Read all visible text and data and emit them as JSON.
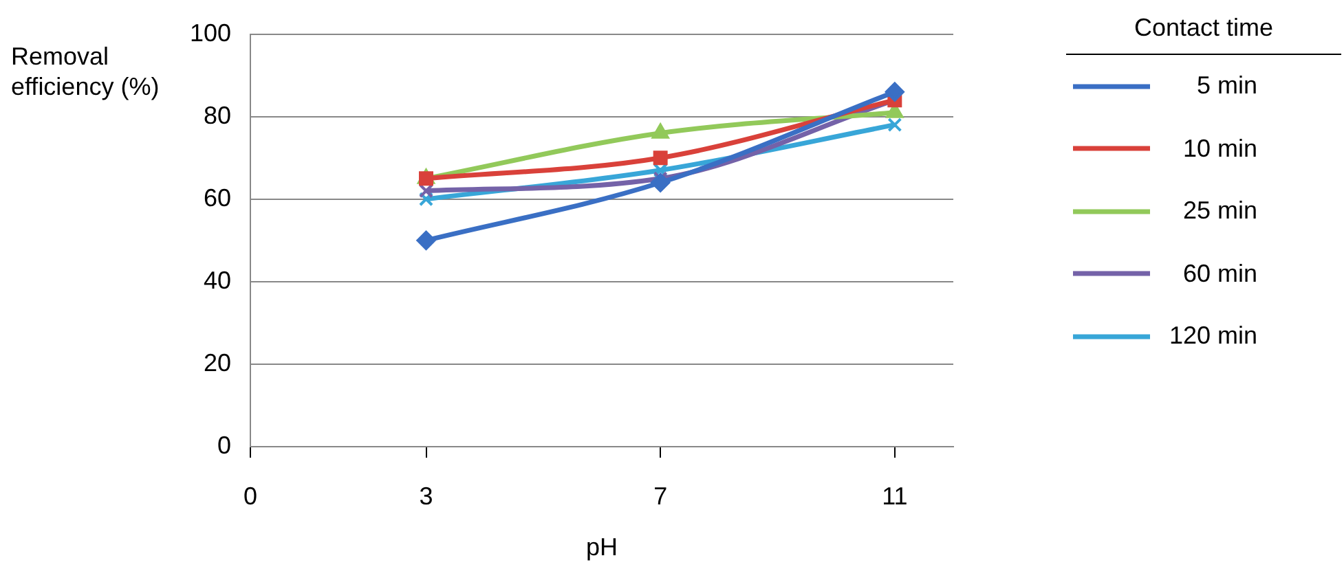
{
  "chart_data": {
    "type": "line",
    "xlabel": "pH",
    "ylabel": "Removal efficiency (%)",
    "legend_title": "Contact time",
    "x": [
      3,
      7,
      11
    ],
    "xlim": [
      0,
      12
    ],
    "xticks": [
      0,
      3,
      7,
      11
    ],
    "ylim": [
      0,
      100
    ],
    "yticks": [
      0,
      20,
      40,
      60,
      80,
      100
    ],
    "grid": "y",
    "legend": "right",
    "series": [
      {
        "name": "5 min",
        "color": "#3a6fc4",
        "marker": "diamond",
        "values": [
          50,
          64,
          86
        ]
      },
      {
        "name": "10 min",
        "color": "#d9413a",
        "marker": "square",
        "values": [
          65,
          70,
          84
        ]
      },
      {
        "name": "25 min",
        "color": "#92c95a",
        "marker": "triangle",
        "values": [
          65,
          76,
          81
        ]
      },
      {
        "name": "60 min",
        "color": "#7462a8",
        "marker": "cross",
        "values": [
          62,
          65,
          84
        ]
      },
      {
        "name": "120 min",
        "color": "#38a6d8",
        "marker": "cross",
        "values": [
          60,
          67,
          78
        ]
      }
    ]
  }
}
